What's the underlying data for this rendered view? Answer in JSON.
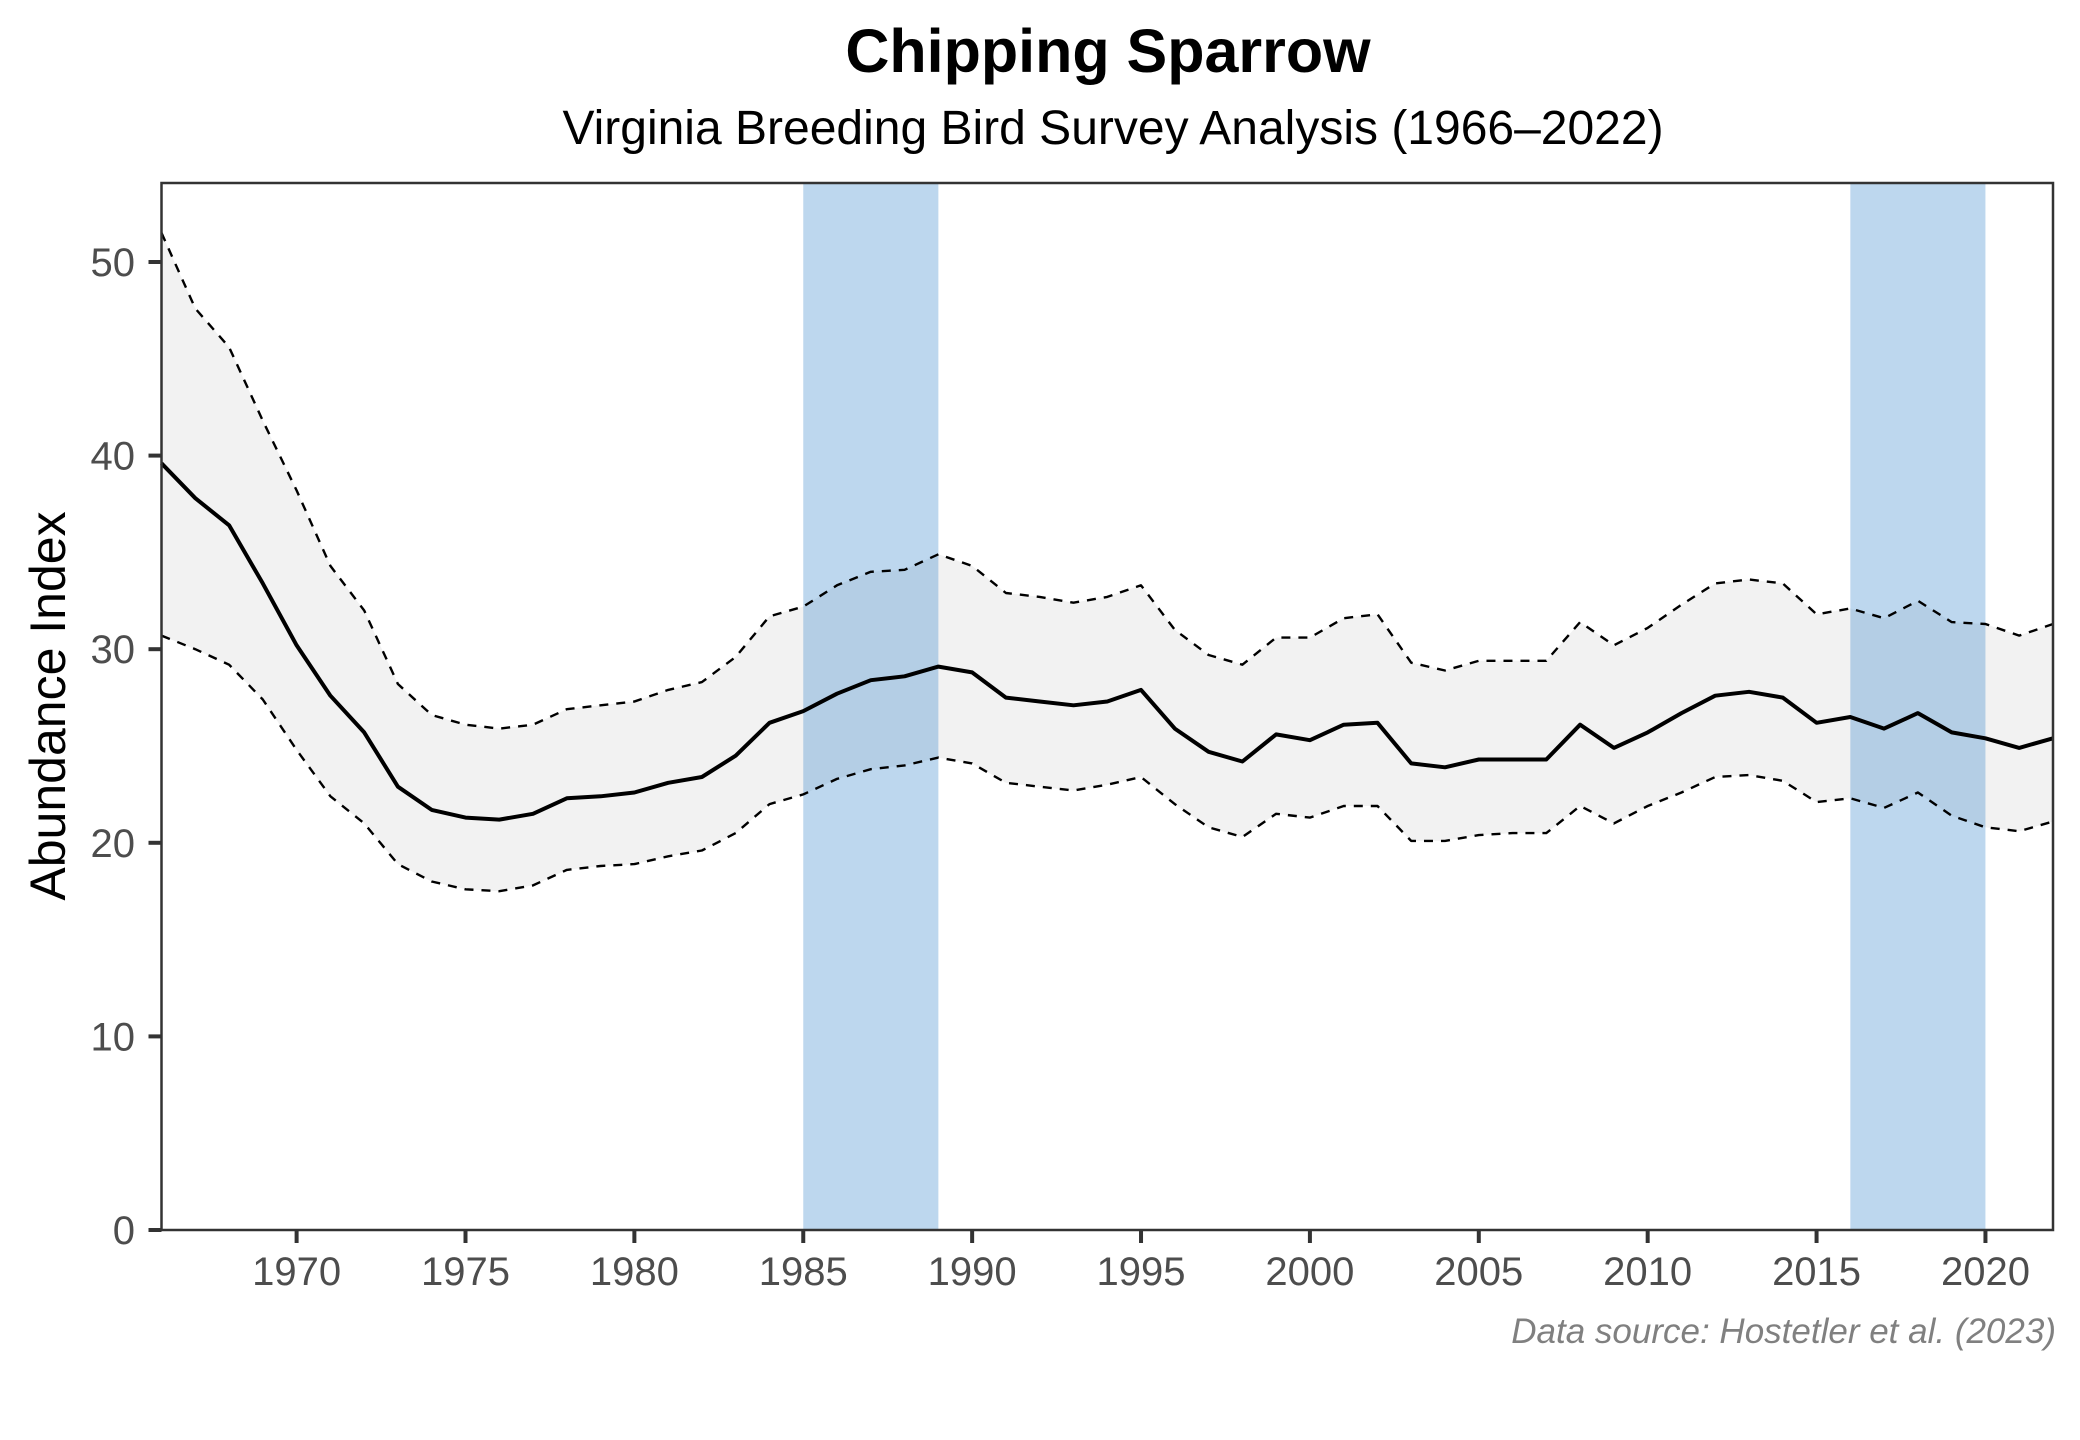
{
  "chart_data": {
    "type": "line",
    "title": "Chipping Sparrow",
    "subtitle": "Virginia Breeding Bird Survey Analysis (1966–2022)",
    "xlabel": "",
    "ylabel": "Abundance Index",
    "caption": "Data source: Hostetler et al. (2023)",
    "xlim": [
      1966,
      2022
    ],
    "ylim": [
      0,
      54.08
    ],
    "grid": false,
    "x_ticks": [
      1970,
      1975,
      1980,
      1985,
      1990,
      1995,
      2000,
      2005,
      2010,
      2015,
      2020
    ],
    "x_tick_labels": [
      "1970",
      "1975",
      "1980",
      "1985",
      "1990",
      "1995",
      "2000",
      "2005",
      "2010",
      "2015",
      "2020"
    ],
    "y_ticks": [
      0,
      10,
      20,
      30,
      40,
      50
    ],
    "y_tick_labels": [
      "0",
      "10",
      "20",
      "30",
      "40",
      "50"
    ],
    "highlight_bands": [
      {
        "start": 1985,
        "end": 1989
      },
      {
        "start": 2016,
        "end": 2020
      }
    ],
    "x": [
      1966,
      1967,
      1968,
      1969,
      1970,
      1971,
      1972,
      1973,
      1974,
      1975,
      1976,
      1977,
      1978,
      1979,
      1980,
      1981,
      1982,
      1983,
      1984,
      1985,
      1986,
      1987,
      1988,
      1989,
      1990,
      1991,
      1992,
      1993,
      1994,
      1995,
      1996,
      1997,
      1998,
      1999,
      2000,
      2001,
      2002,
      2003,
      2004,
      2005,
      2006,
      2007,
      2008,
      2009,
      2010,
      2011,
      2012,
      2013,
      2014,
      2015,
      2016,
      2017,
      2018,
      2019,
      2020,
      2021,
      2022
    ],
    "series": [
      {
        "name": "Abundance Index",
        "style": "solid",
        "values": [
          39.6,
          37.8,
          36.4,
          33.4,
          30.2,
          27.6,
          25.7,
          22.9,
          21.7,
          21.3,
          21.2,
          21.5,
          22.3,
          22.4,
          22.6,
          23.1,
          23.4,
          24.5,
          26.2,
          26.8,
          27.7,
          28.4,
          28.6,
          29.1,
          28.8,
          27.5,
          27.3,
          27.1,
          27.3,
          27.9,
          25.9,
          24.7,
          24.2,
          25.6,
          25.3,
          26.1,
          26.2,
          24.1,
          23.9,
          24.3,
          24.3,
          24.3,
          26.1,
          24.9,
          25.7,
          26.7,
          27.6,
          27.8,
          27.5,
          26.2,
          26.5,
          25.9,
          26.7,
          25.7,
          25.4,
          24.9,
          25.4
        ]
      },
      {
        "name": "Upper credible interval",
        "style": "dashed",
        "values": [
          51.5,
          47.6,
          45.6,
          41.8,
          38.2,
          34.3,
          32.0,
          28.2,
          26.6,
          26.1,
          25.9,
          26.1,
          26.9,
          27.1,
          27.3,
          27.9,
          28.3,
          29.6,
          31.7,
          32.2,
          33.3,
          34.0,
          34.1,
          34.9,
          34.3,
          32.9,
          32.7,
          32.4,
          32.7,
          33.3,
          31.0,
          29.7,
          29.2,
          30.6,
          30.6,
          31.6,
          31.8,
          29.3,
          28.9,
          29.4,
          29.4,
          29.4,
          31.4,
          30.2,
          31.1,
          32.3,
          33.4,
          33.6,
          33.4,
          31.8,
          32.1,
          31.6,
          32.5,
          31.4,
          31.3,
          30.7,
          31.3
        ]
      },
      {
        "name": "Lower credible interval",
        "style": "dashed",
        "values": [
          30.7,
          30.0,
          29.2,
          27.4,
          24.8,
          22.4,
          21.0,
          18.9,
          18.0,
          17.6,
          17.5,
          17.8,
          18.6,
          18.8,
          18.9,
          19.3,
          19.6,
          20.5,
          22.0,
          22.5,
          23.3,
          23.8,
          24.0,
          24.4,
          24.1,
          23.1,
          22.9,
          22.7,
          23.0,
          23.4,
          22.0,
          20.8,
          20.3,
          21.5,
          21.3,
          21.9,
          21.9,
          20.1,
          20.1,
          20.4,
          20.5,
          20.5,
          21.9,
          21.0,
          21.9,
          22.6,
          23.4,
          23.5,
          23.2,
          22.1,
          22.3,
          21.8,
          22.6,
          21.4,
          20.8,
          20.6,
          21.1
        ]
      }
    ],
    "colors": {
      "line": "#000000",
      "ribbon": "#f2f2f2",
      "band": "#2a7ec8",
      "axis": "#333333",
      "tick_label": "#4d4d4d",
      "caption": "#808080"
    }
  }
}
